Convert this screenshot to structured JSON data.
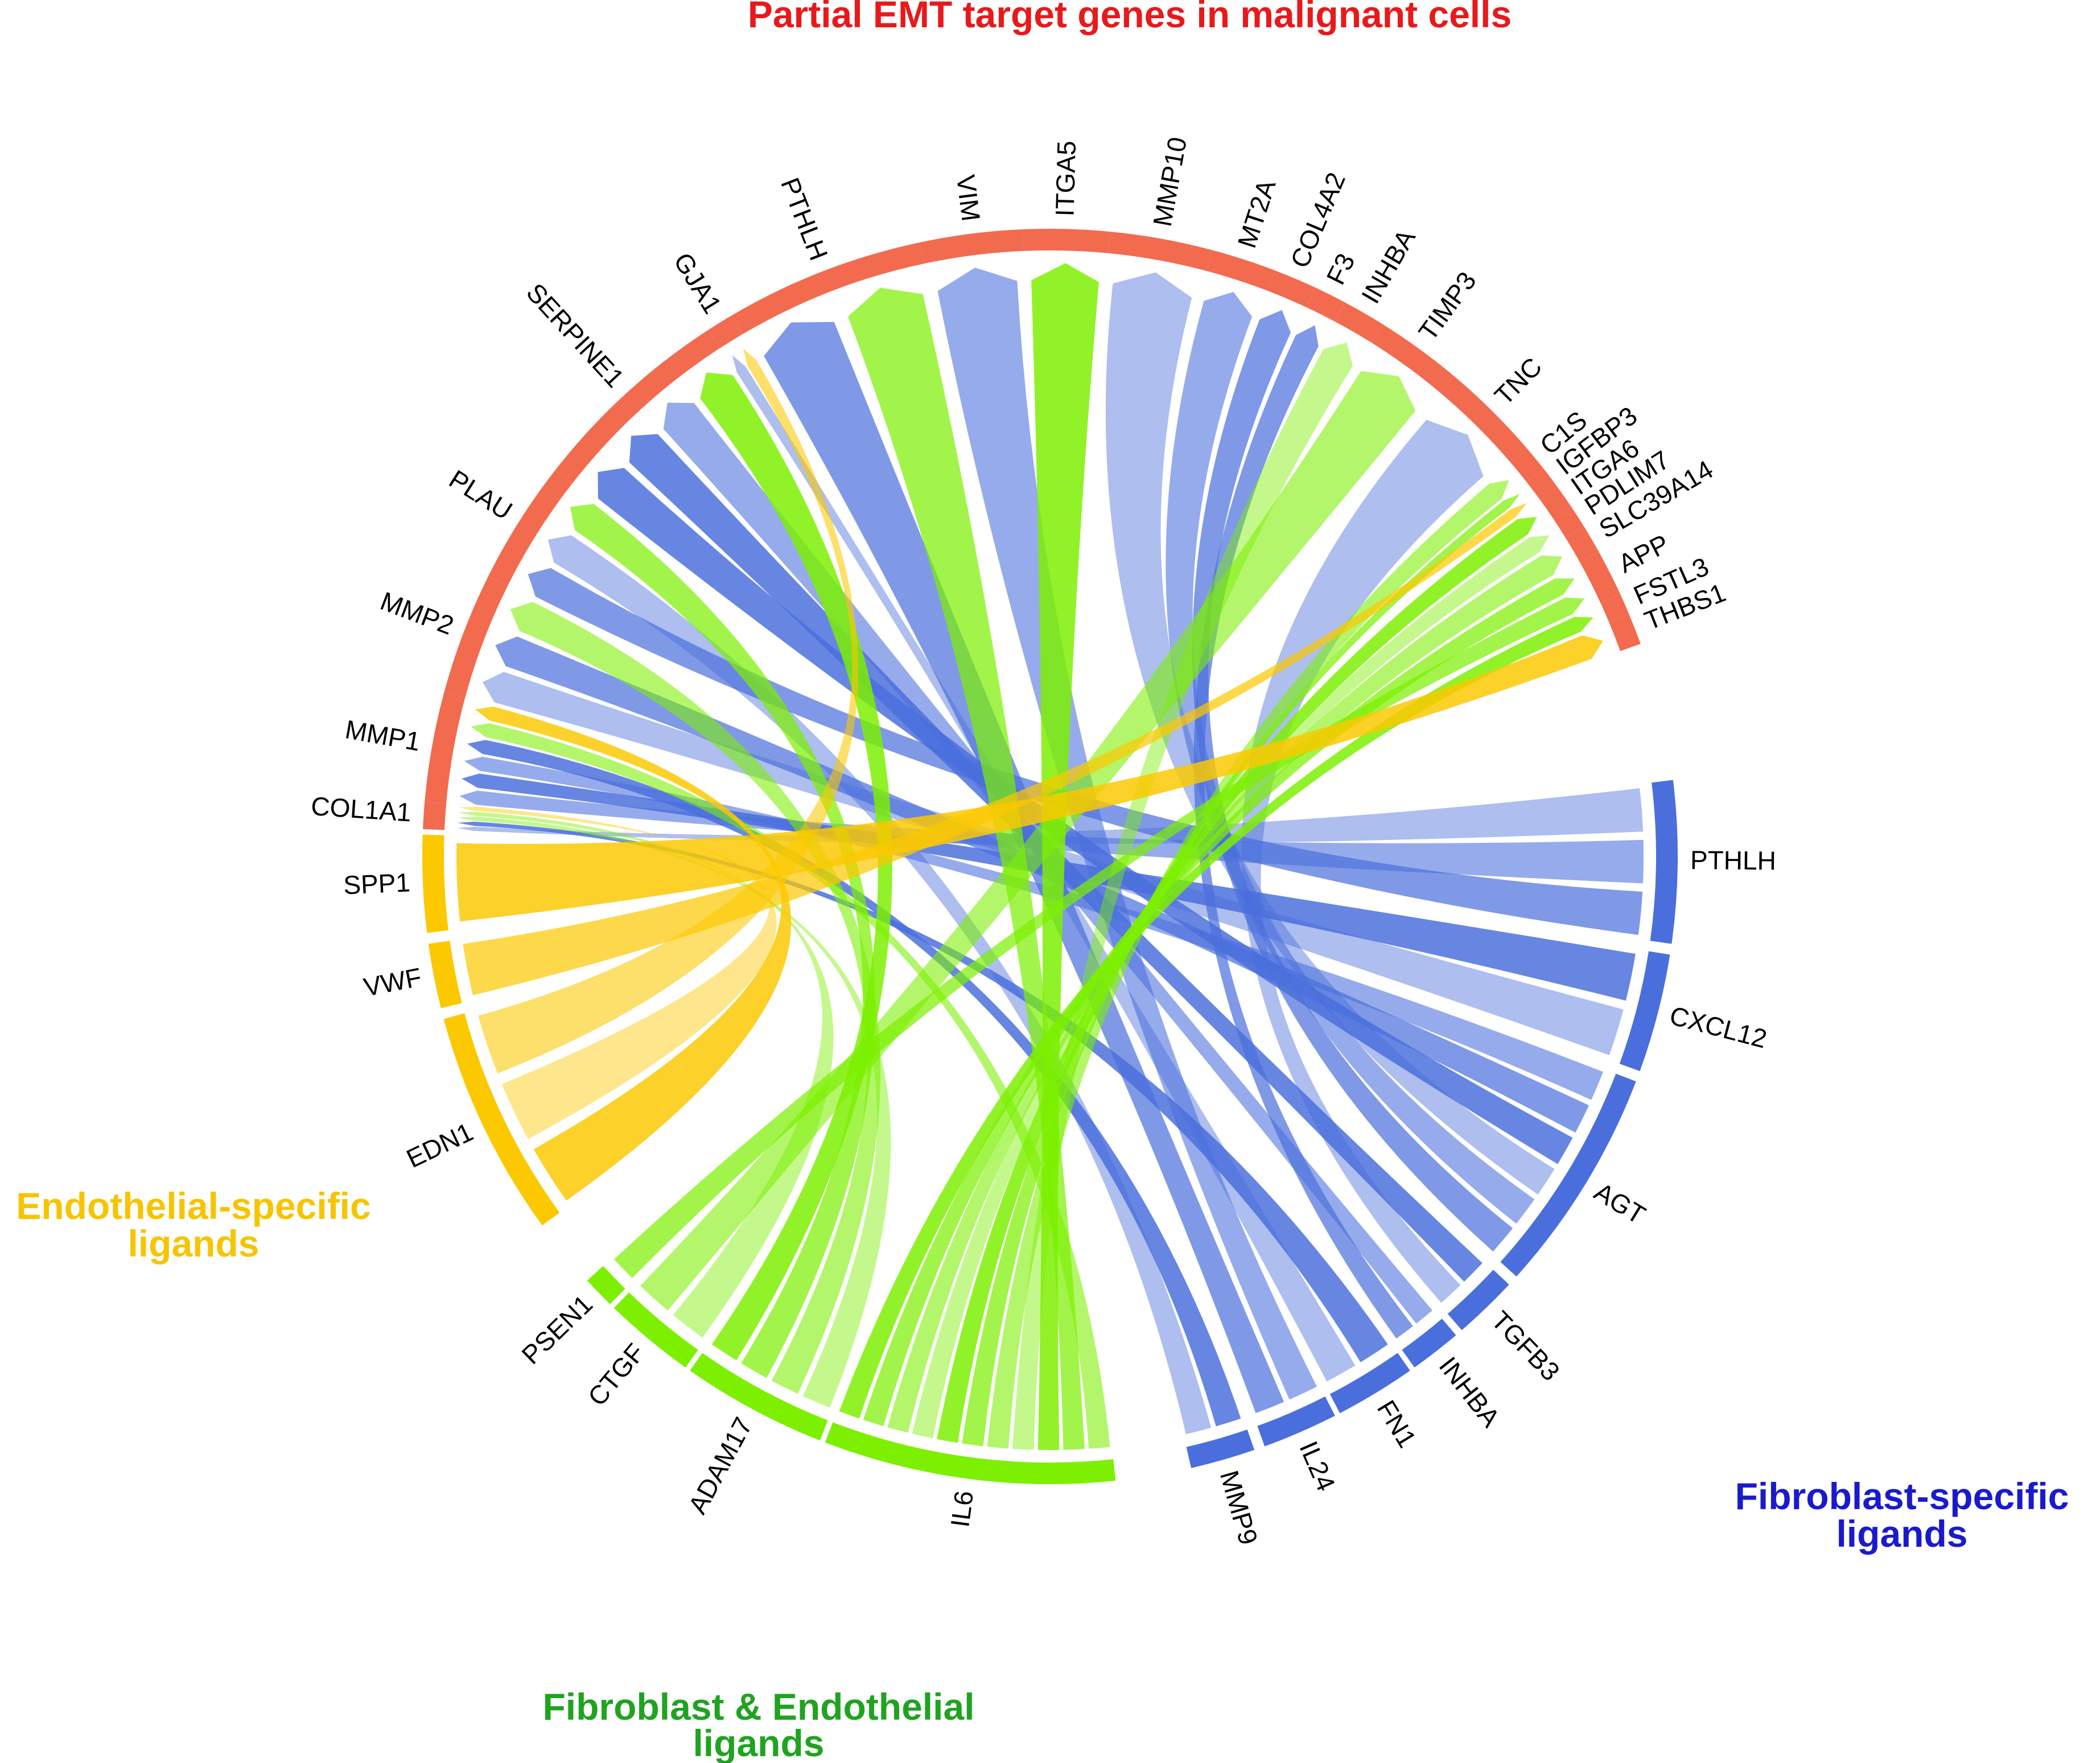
{
  "titles": {
    "targets": "Partial EMT target genes in malignant cells",
    "endothelial_line1": "Endothelial-specific",
    "endothelial_line2": "ligands",
    "fibroblast_line1": "Fibroblast-specific",
    "fibroblast_line2": "ligands",
    "both_line1": "Fibroblast & Endothelial",
    "both_line2": "ligands"
  },
  "colors": {
    "targets": "#f26b4f",
    "fibroblast": "#4a6fdc",
    "endothelial": "#fcc800",
    "both": "#7cf000",
    "title_targets": "#e8191b",
    "title_endothelial": "#f7c400",
    "title_fibroblast": "#1a1acd",
    "title_both": "#20a320"
  },
  "chart_data": {
    "type": "chord",
    "groups": [
      {
        "name": "Partial EMT target genes in malignant cells",
        "color": "#f26b4f"
      },
      {
        "name": "Fibroblast-specific ligands",
        "color": "#4a6fdc"
      },
      {
        "name": "Fibroblast & Endothelial ligands",
        "color": "#7cf000"
      },
      {
        "name": "Endothelial-specific ligands",
        "color": "#fcc800"
      }
    ],
    "targets": [
      "COL1A1",
      "MMP1",
      "MMP2",
      "PLAU",
      "SERPINE1",
      "GJA1",
      "PTHLH",
      "VIM",
      "ITGA5",
      "MMP10",
      "MT2A",
      "COL4A2",
      "F3",
      "INHBA",
      "TIMP3",
      "TNC",
      "C1S",
      "IGFBP3",
      "ITGA6",
      "PDLIM7",
      "SLC39A14",
      "APP",
      "FSTL3",
      "THBS1"
    ],
    "ligands": [
      {
        "name": "PTHLH",
        "group": "Fibroblast-specific ligands"
      },
      {
        "name": "CXCL12",
        "group": "Fibroblast-specific ligands"
      },
      {
        "name": "AGT",
        "group": "Fibroblast-specific ligands"
      },
      {
        "name": "TGFB3",
        "group": "Fibroblast-specific ligands"
      },
      {
        "name": "INHBA",
        "group": "Fibroblast-specific ligands"
      },
      {
        "name": "FN1",
        "group": "Fibroblast-specific ligands"
      },
      {
        "name": "IL24",
        "group": "Fibroblast-specific ligands"
      },
      {
        "name": "MMP9",
        "group": "Fibroblast-specific ligands"
      },
      {
        "name": "IL6",
        "group": "Fibroblast & Endothelial ligands"
      },
      {
        "name": "ADAM17",
        "group": "Fibroblast & Endothelial ligands"
      },
      {
        "name": "CTGF",
        "group": "Fibroblast & Endothelial ligands"
      },
      {
        "name": "PSEN1",
        "group": "Fibroblast & Endothelial ligands"
      },
      {
        "name": "EDN1",
        "group": "Endothelial-specific ligands"
      },
      {
        "name": "VWF",
        "group": "Endothelial-specific ligands"
      },
      {
        "name": "SPP1",
        "group": "Endothelial-specific ligands"
      }
    ],
    "links": [
      {
        "ligand": "PTHLH",
        "target": "COL1A1"
      },
      {
        "ligand": "PTHLH",
        "target": "MMP1"
      },
      {
        "ligand": "PTHLH",
        "target": "PLAU"
      },
      {
        "ligand": "CXCL12",
        "target": "MMP1"
      },
      {
        "ligand": "CXCL12",
        "target": "MMP2"
      },
      {
        "ligand": "AGT",
        "target": "MMP1"
      },
      {
        "ligand": "AGT",
        "target": "MMP2"
      },
      {
        "ligand": "AGT",
        "target": "SERPINE1"
      },
      {
        "ligand": "AGT",
        "target": "MMP10"
      },
      {
        "ligand": "AGT",
        "target": "MT2A"
      },
      {
        "ligand": "AGT",
        "target": "COL4A2"
      },
      {
        "ligand": "TGFB3",
        "target": "SERPINE1"
      },
      {
        "ligand": "TGFB3",
        "target": "TNC"
      },
      {
        "ligand": "INHBA",
        "target": "SERPINE1"
      },
      {
        "ligand": "INHBA",
        "target": "F3"
      },
      {
        "ligand": "FN1",
        "target": "COL1A1"
      },
      {
        "ligand": "FN1",
        "target": "GJA1"
      },
      {
        "ligand": "IL24",
        "target": "VIM"
      },
      {
        "ligand": "IL24",
        "target": "PTHLH"
      },
      {
        "ligand": "MMP9",
        "target": "MMP1"
      },
      {
        "ligand": "MMP9",
        "target": "PLAU"
      },
      {
        "ligand": "IL6",
        "target": "MMP1"
      },
      {
        "ligand": "IL6",
        "target": "PTHLH"
      },
      {
        "ligand": "IL6",
        "target": "ITGA5"
      },
      {
        "ligand": "IL6",
        "target": "INHBA"
      },
      {
        "ligand": "IL6",
        "target": "C1S"
      },
      {
        "ligand": "IL6",
        "target": "IGFBP3"
      },
      {
        "ligand": "IL6",
        "target": "ITGA6"
      },
      {
        "ligand": "IL6",
        "target": "PDLIM7"
      },
      {
        "ligand": "IL6",
        "target": "SLC39A14"
      },
      {
        "ligand": "IL6",
        "target": "APP"
      },
      {
        "ligand": "IL6",
        "target": "FSTL3"
      },
      {
        "ligand": "ADAM17",
        "target": "COL1A1"
      },
      {
        "ligand": "ADAM17",
        "target": "MMP2"
      },
      {
        "ligand": "ADAM17",
        "target": "PLAU"
      },
      {
        "ligand": "ADAM17",
        "target": "SERPINE1"
      },
      {
        "ligand": "CTGF",
        "target": "COL1A1"
      },
      {
        "ligand": "CTGF",
        "target": "TIMP3"
      },
      {
        "ligand": "PSEN1",
        "target": "APP"
      },
      {
        "ligand": "EDN1",
        "target": "MMP1"
      },
      {
        "ligand": "EDN1",
        "target": "COL1A1"
      },
      {
        "ligand": "EDN1",
        "target": "GJA1"
      },
      {
        "ligand": "VWF",
        "target": "IGFBP3"
      },
      {
        "ligand": "SPP1",
        "target": "THBS1"
      }
    ]
  }
}
